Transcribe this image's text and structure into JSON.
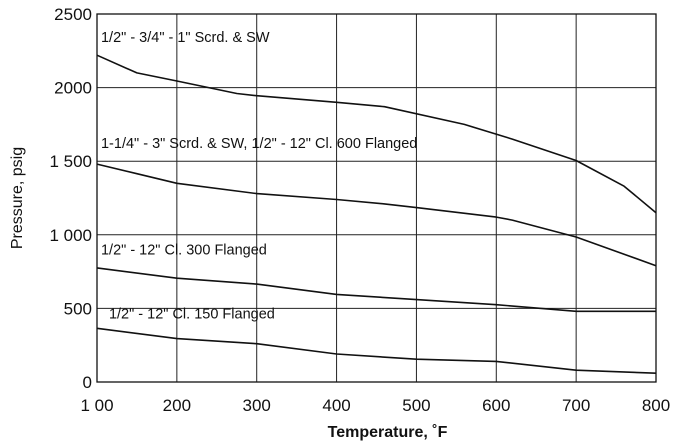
{
  "chart_data": {
    "type": "line",
    "title": "",
    "xlabel": "Temperature, ˚F",
    "ylabel": "Pressure, psig",
    "xlim": [
      100,
      800
    ],
    "ylim": [
      0,
      2500
    ],
    "grid": true,
    "x_ticks": [
      100,
      200,
      300,
      400,
      500,
      600,
      700,
      800
    ],
    "x_tick_labels": [
      "1 00",
      "200",
      "300",
      "400",
      "500",
      "600",
      "700",
      "800"
    ],
    "y_ticks": [
      0,
      500,
      1000,
      1500,
      2000,
      2500
    ],
    "y_tick_labels": [
      "0",
      "500",
      "1 000",
      "1 500",
      "2000",
      "2500"
    ],
    "series": [
      {
        "name": "1/2\" - 3/4\" - 1\" Scrd. & SW",
        "x": [
          100,
          150,
          200,
          275,
          300,
          400,
          460,
          560,
          620,
          700,
          760,
          800
        ],
        "y": [
          2220,
          2100,
          2045,
          1960,
          1945,
          1900,
          1870,
          1750,
          1650,
          1505,
          1330,
          1150
        ]
      },
      {
        "name": "1-1/4\" - 3\" Scrd. & SW, 1/2\" -  12\" Cl. 600 Flanged",
        "x": [
          100,
          150,
          200,
          300,
          400,
          460,
          500,
          600,
          620,
          700,
          800
        ],
        "y": [
          1480,
          1415,
          1350,
          1280,
          1240,
          1210,
          1185,
          1120,
          1100,
          985,
          790
        ]
      },
      {
        "name": "1/2\" - 12\" Cl. 300 Flanged",
        "x": [
          100,
          200,
          300,
          400,
          500,
          600,
          700,
          800
        ],
        "y": [
          775,
          705,
          665,
          595,
          560,
          525,
          480,
          480
        ]
      },
      {
        "name": "1/2\" - 12\" Cl. 150 Flanged",
        "x": [
          100,
          200,
          300,
          400,
          500,
          600,
          700,
          800
        ],
        "y": [
          365,
          295,
          260,
          190,
          155,
          140,
          80,
          60
        ]
      }
    ]
  }
}
